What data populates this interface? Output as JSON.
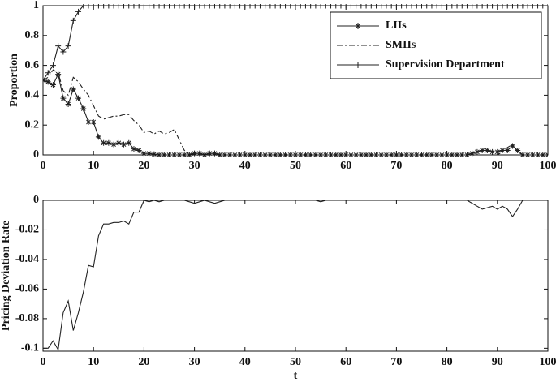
{
  "chart_data": [
    {
      "type": "line",
      "y_label": "Proportion",
      "x": [
        0,
        1,
        2,
        3,
        4,
        5,
        6,
        7,
        8,
        9,
        10,
        11,
        12,
        13,
        14,
        15,
        16,
        17,
        18,
        19,
        20,
        21,
        22,
        23,
        24,
        25,
        26,
        27,
        28,
        29,
        30,
        31,
        32,
        33,
        34,
        35,
        36,
        37,
        38,
        39,
        40,
        41,
        42,
        43,
        44,
        45,
        46,
        47,
        48,
        49,
        50,
        51,
        52,
        53,
        54,
        55,
        56,
        57,
        58,
        59,
        60,
        61,
        62,
        63,
        64,
        65,
        66,
        67,
        68,
        69,
        70,
        71,
        72,
        73,
        74,
        75,
        76,
        77,
        78,
        79,
        80,
        81,
        82,
        83,
        84,
        85,
        86,
        87,
        88,
        89,
        90,
        91,
        92,
        93,
        94,
        95,
        96,
        97,
        98,
        99,
        100
      ],
      "xlim": [
        0,
        100
      ],
      "xticks": [
        0,
        10,
        20,
        30,
        40,
        50,
        60,
        70,
        80,
        90,
        100
      ],
      "ylim": [
        0,
        1
      ],
      "yticks": [
        0,
        0.2,
        0.4,
        0.6,
        0.8,
        1
      ],
      "legend": "upper right",
      "series": [
        {
          "name": "LIIs",
          "color": "#222222",
          "linestyle": "solid",
          "marker": "asterisk",
          "values": [
            0.5,
            0.49,
            0.47,
            0.54,
            0.38,
            0.34,
            0.44,
            0.38,
            0.31,
            0.22,
            0.22,
            0.12,
            0.08,
            0.08,
            0.07,
            0.08,
            0.07,
            0.08,
            0.04,
            0.03,
            0.01,
            0.01,
            0.005,
            0,
            0,
            0,
            0,
            0,
            0,
            0,
            0.01,
            0.01,
            0,
            0.01,
            0.01,
            0,
            0,
            0,
            0,
            0,
            0,
            0,
            0,
            0,
            0,
            0,
            0,
            0,
            0,
            0,
            0,
            0,
            0,
            0,
            0,
            0,
            0,
            0,
            0,
            0,
            0,
            0,
            0,
            0,
            0,
            0,
            0,
            0,
            0,
            0,
            0,
            0,
            0,
            0,
            0,
            0,
            0,
            0,
            0,
            0,
            0,
            0,
            0,
            0,
            0,
            0.01,
            0.02,
            0.03,
            0.03,
            0.02,
            0.02,
            0.03,
            0.03,
            0.06,
            0.03,
            0,
            0,
            0,
            0,
            0,
            0
          ]
        },
        {
          "name": "SMIIs",
          "color": "#222222",
          "linestyle": "dashdot",
          "marker": "none",
          "values": [
            0.5,
            0.52,
            0.57,
            0.55,
            0.43,
            0.4,
            0.52,
            0.49,
            0.44,
            0.4,
            0.33,
            0.26,
            0.24,
            0.25,
            0.26,
            0.26,
            0.27,
            0.27,
            0.23,
            0.2,
            0.15,
            0.16,
            0.14,
            0.16,
            0.14,
            0.15,
            0.17,
            0.1,
            0.03,
            0.01,
            0,
            0,
            0,
            0,
            0,
            0,
            0,
            0,
            0,
            0,
            0,
            0,
            0,
            0,
            0,
            0,
            0,
            0,
            0,
            0,
            0,
            0,
            0,
            0,
            0,
            0,
            0,
            0,
            0,
            0,
            0,
            0,
            0,
            0,
            0,
            0,
            0,
            0,
            0,
            0,
            0,
            0,
            0,
            0,
            0,
            0,
            0,
            0,
            0,
            0,
            0,
            0,
            0,
            0,
            0,
            0,
            0,
            0,
            0,
            0,
            0,
            0.02,
            0.05,
            0.07,
            0.02,
            0,
            0,
            0,
            0,
            0,
            0
          ]
        },
        {
          "name": "Supervision Department",
          "color": "#222222",
          "linestyle": "solid",
          "marker": "plus",
          "values": [
            0.5,
            0.55,
            0.6,
            0.73,
            0.69,
            0.73,
            0.9,
            0.96,
            1,
            1,
            1,
            1,
            1,
            1,
            1,
            1,
            1,
            1,
            1,
            1,
            1,
            1,
            1,
            1,
            1,
            1,
            1,
            1,
            1,
            1,
            1,
            1,
            1,
            1,
            1,
            1,
            1,
            1,
            1,
            1,
            1,
            1,
            1,
            1,
            1,
            1,
            1,
            1,
            1,
            1,
            1,
            1,
            1,
            1,
            1,
            1,
            1,
            1,
            1,
            1,
            1,
            1,
            1,
            1,
            1,
            1,
            1,
            1,
            1,
            1,
            1,
            1,
            1,
            1,
            1,
            1,
            1,
            1,
            1,
            1,
            1,
            1,
            1,
            1,
            1,
            1,
            1,
            1,
            1,
            1,
            1,
            1,
            1,
            1,
            1,
            1,
            1,
            1,
            1,
            1,
            1
          ]
        }
      ]
    },
    {
      "type": "line",
      "x_label": "t",
      "y_label": "Pricing Deviation Rate",
      "x": [
        0,
        1,
        2,
        3,
        4,
        5,
        6,
        7,
        8,
        9,
        10,
        11,
        12,
        13,
        14,
        15,
        16,
        17,
        18,
        19,
        20,
        21,
        22,
        23,
        24,
        25,
        26,
        27,
        28,
        29,
        30,
        31,
        32,
        33,
        34,
        35,
        36,
        37,
        38,
        39,
        40,
        41,
        42,
        43,
        44,
        45,
        46,
        47,
        48,
        49,
        50,
        51,
        52,
        53,
        54,
        55,
        56,
        57,
        58,
        59,
        60,
        61,
        62,
        63,
        64,
        65,
        66,
        67,
        68,
        69,
        70,
        71,
        72,
        73,
        74,
        75,
        76,
        77,
        78,
        79,
        80,
        81,
        82,
        83,
        84,
        85,
        86,
        87,
        88,
        89,
        90,
        91,
        92,
        93,
        94,
        95,
        96,
        97,
        98,
        99,
        100
      ],
      "xlim": [
        0,
        100
      ],
      "xticks": [
        0,
        10,
        20,
        30,
        40,
        50,
        60,
        70,
        80,
        90,
        100
      ],
      "ylim": [
        -0.102,
        0
      ],
      "yticks": [
        0,
        -0.02,
        -0.04,
        -0.06,
        -0.08,
        -0.1
      ],
      "series": [
        {
          "color": "#222222",
          "linestyle": "solid",
          "marker": "none",
          "values": [
            -0.1,
            -0.1,
            -0.095,
            -0.101,
            -0.076,
            -0.068,
            -0.088,
            -0.076,
            -0.062,
            -0.044,
            -0.045,
            -0.024,
            -0.016,
            -0.016,
            -0.015,
            -0.015,
            -0.014,
            -0.016,
            -0.008,
            -0.008,
            0,
            -0.001,
            0,
            -0.001,
            0,
            0,
            0,
            0,
            0,
            -0.001,
            -0.002,
            -0.001,
            0,
            -0.001,
            -0.002,
            -0.001,
            0,
            0,
            0,
            0,
            0,
            0,
            0,
            0,
            0,
            0,
            0,
            0,
            0,
            0,
            0,
            0,
            0,
            0,
            0,
            -0.001,
            0,
            0,
            0,
            0,
            0,
            0,
            0,
            0,
            0,
            0,
            0,
            0,
            0,
            0,
            0,
            0,
            0,
            0,
            0,
            0,
            0,
            0,
            0,
            0,
            0,
            0,
            0,
            0,
            0,
            -0.002,
            -0.004,
            -0.006,
            -0.005,
            -0.004,
            -0.006,
            -0.004,
            -0.006,
            -0.011,
            -0.006,
            0,
            0,
            0,
            0,
            0,
            0
          ]
        }
      ]
    }
  ]
}
